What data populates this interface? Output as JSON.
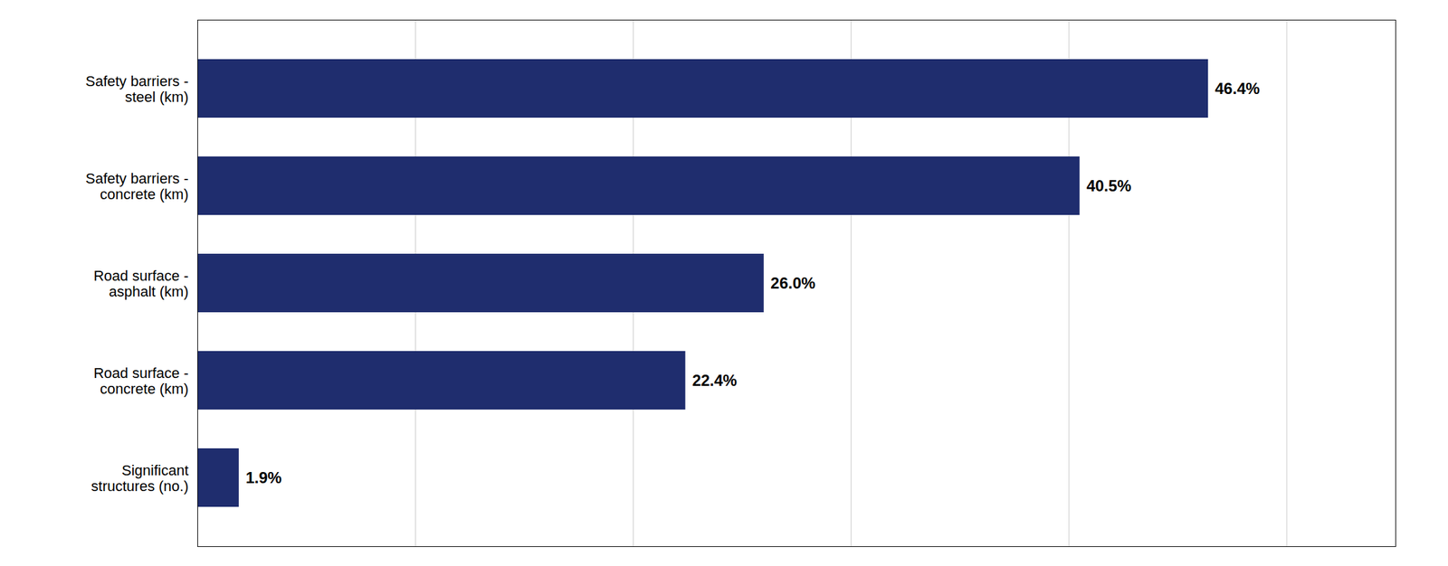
{
  "chart_data": {
    "type": "bar",
    "orientation": "horizontal",
    "categories": [
      "Significant\nstructures (no.)",
      "Road surface -\nconcrete (km)",
      "Road surface -\nasphalt (km)",
      "Safety barriers -\nconcrete (km)",
      "Safety barriers -\nsteel (km)"
    ],
    "values": [
      1.9,
      22.4,
      26.0,
      40.5,
      46.4
    ],
    "value_labels": [
      "1.9%",
      "22.4%",
      "26.0%",
      "40.5%",
      "46.4%"
    ],
    "data_labels": true,
    "color": "#1f2d6e",
    "xlim": [
      0,
      55
    ],
    "xticks": [
      0,
      10,
      20,
      30,
      40,
      50
    ],
    "grid": true,
    "tick_labels": "y"
  }
}
